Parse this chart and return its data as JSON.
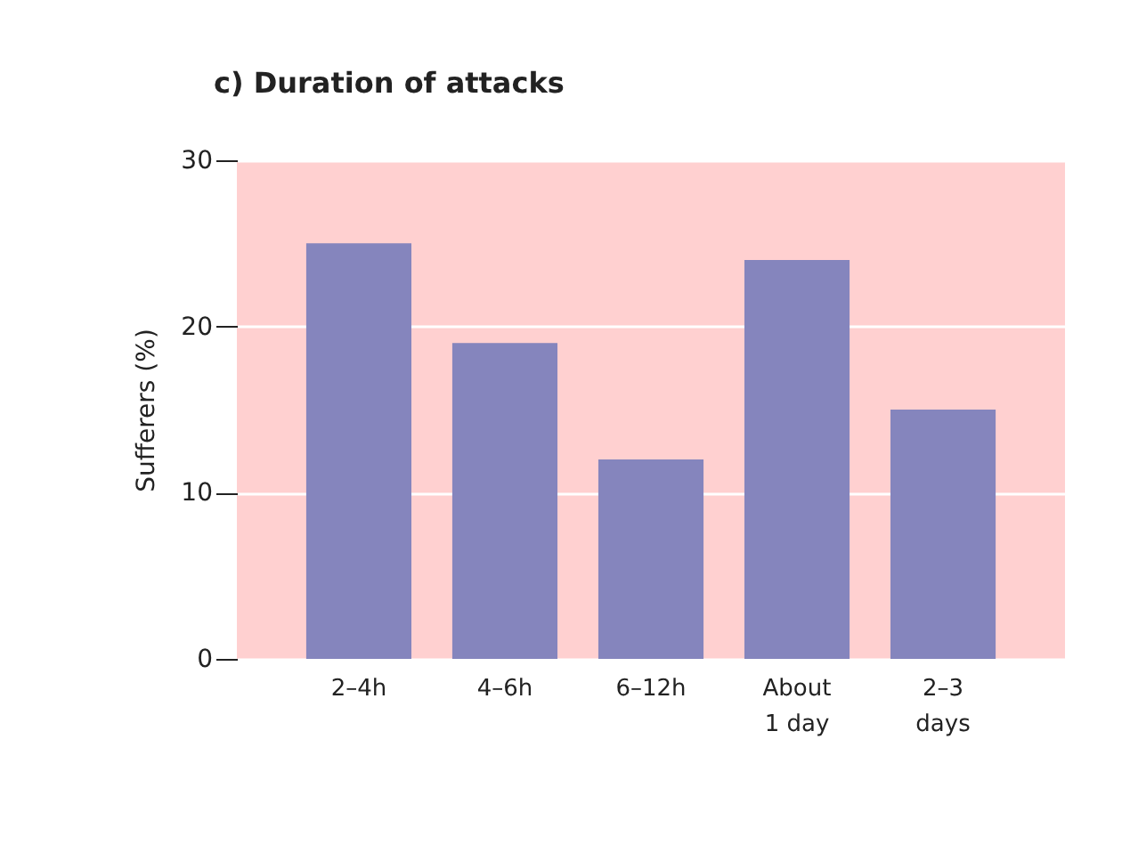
{
  "chart_data": {
    "type": "bar",
    "title": "c)  Duration of attacks",
    "ylabel": "Sufferers (%)",
    "categories": [
      "2–4h",
      "4–6h",
      "6–12h",
      "About\n1 day",
      "2–3\ndays"
    ],
    "values": [
      25,
      19,
      12,
      24,
      15
    ],
    "color": "#8585bd",
    "ylim": [
      0,
      30
    ],
    "yticks": [
      0,
      10,
      20,
      30
    ],
    "grid": "y"
  }
}
